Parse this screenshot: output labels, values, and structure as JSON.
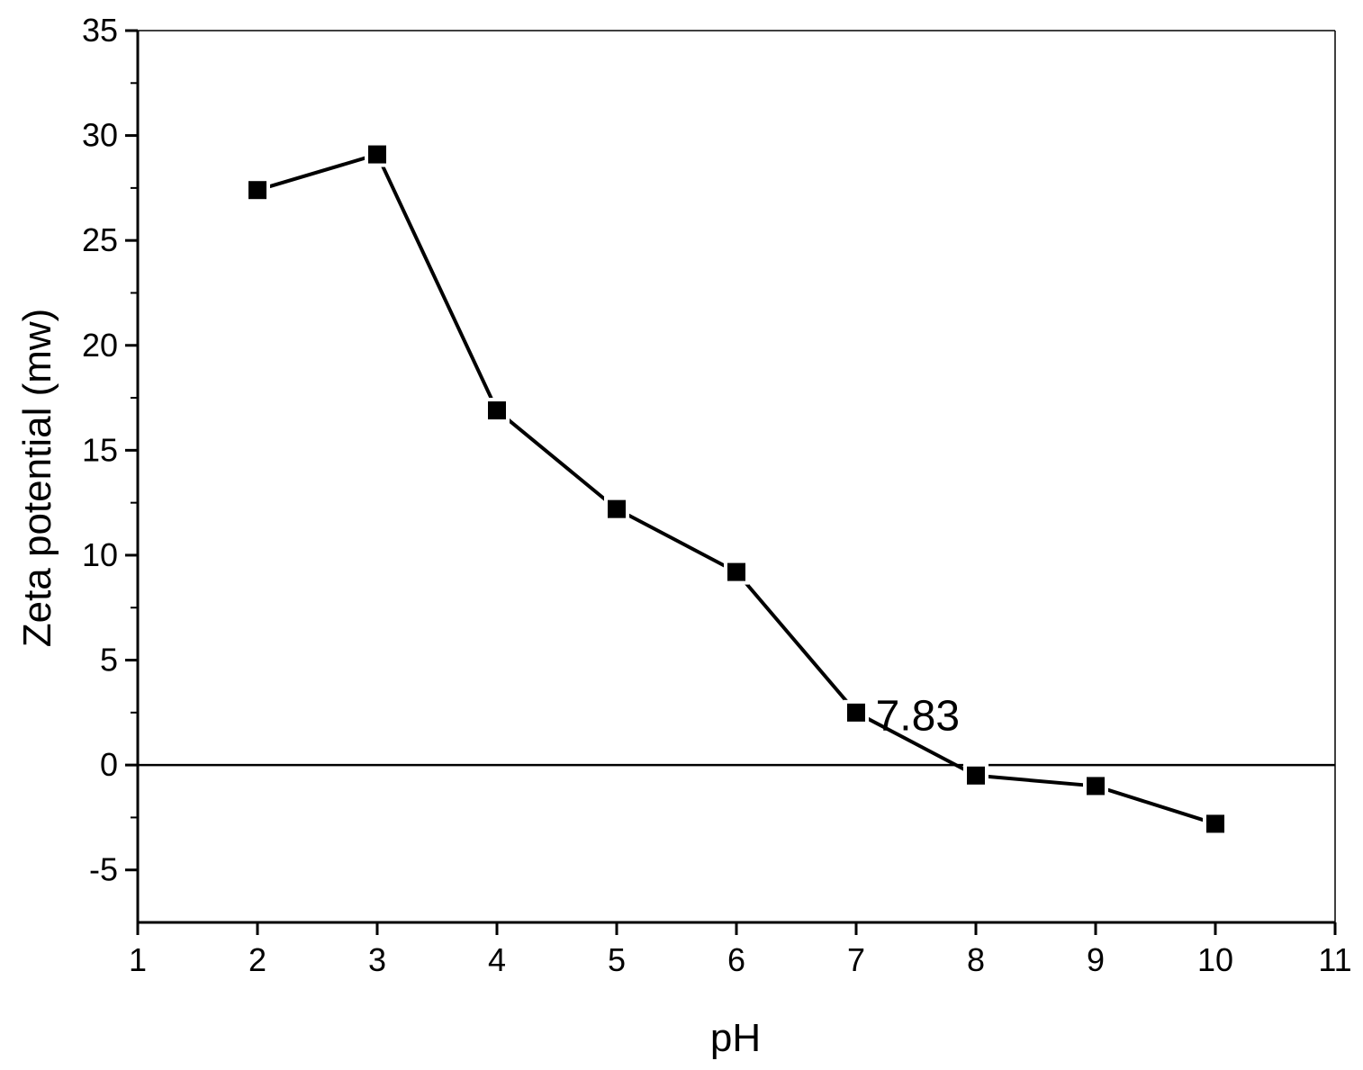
{
  "chart_data": {
    "type": "line",
    "title": "",
    "xlabel": "pH",
    "ylabel": "Zeta potential (mw)",
    "xlim": [
      1,
      11
    ],
    "ylim": [
      -7.5,
      35
    ],
    "x_ticks": [
      1,
      2,
      3,
      4,
      5,
      6,
      7,
      8,
      9,
      10,
      11
    ],
    "y_ticks": [
      -5,
      0,
      5,
      10,
      15,
      20,
      25,
      30,
      35
    ],
    "grid": false,
    "legend": "none",
    "reference_line": {
      "y": 0
    },
    "series": [
      {
        "marker": "square",
        "color": "#000000",
        "x": [
          2,
          3,
          4,
          5,
          6,
          7,
          8,
          9,
          10
        ],
        "y": [
          27.4,
          29.1,
          16.9,
          12.2,
          9.2,
          2.5,
          -0.5,
          -1.0,
          -2.8
        ]
      }
    ],
    "annotations": [
      {
        "text": "7.83",
        "x": 8.2,
        "y": 2.0
      }
    ]
  }
}
